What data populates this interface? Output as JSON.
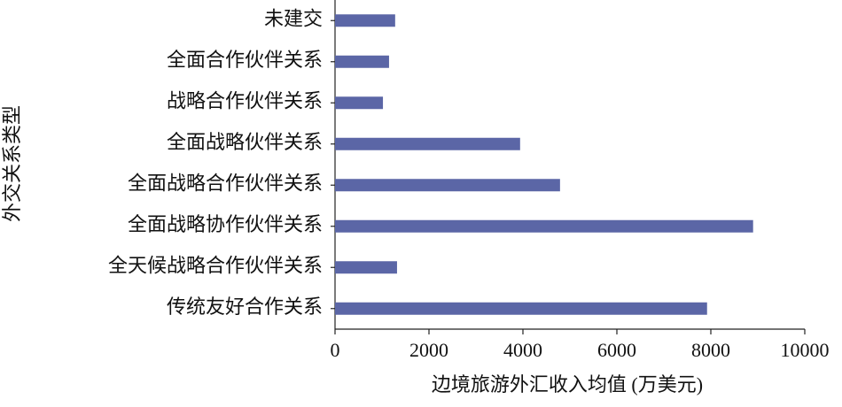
{
  "chart_data": {
    "type": "barh",
    "categories": [
      "未建交",
      "全面合作伙伴关系",
      "战略合作伙伴关系",
      "全面战略伙伴关系",
      "全面战略合作伙伴关系",
      "全面战略协作伙伴关系",
      "全天候战略合作伙伴关系",
      "传统友好合作关系"
    ],
    "values": [
      1280,
      1150,
      1020,
      3940,
      4790,
      8900,
      1320,
      7920
    ],
    "color": "#5b66a6",
    "xlim": [
      0,
      10000
    ],
    "xticks": [
      0,
      2000,
      4000,
      6000,
      8000,
      10000
    ],
    "x_label": "边境旅游外汇收入均值 (万美元)",
    "y_label": "外交关系类型"
  }
}
